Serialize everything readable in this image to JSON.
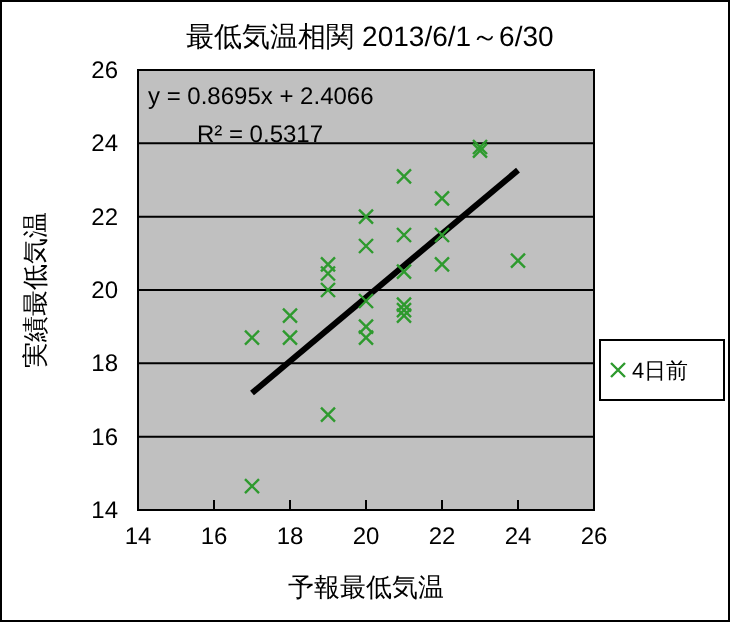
{
  "chart_data": {
    "type": "scatter",
    "title": "最低気温相関  2013/6/1～6/30",
    "xlabel": "予報最低気温",
    "ylabel": "実績最低気温",
    "annotations": [
      "y = 0.8695x + 2.4066",
      "R² = 0.5317"
    ],
    "series": [
      {
        "name": "4日前",
        "color": "#2e9a2e",
        "marker": "cross",
        "x": [
          17,
          17,
          18,
          18,
          19,
          19,
          19,
          19,
          20,
          20,
          20,
          20,
          20,
          21,
          21,
          21,
          21,
          21,
          21,
          22,
          22,
          22,
          23,
          23,
          24
        ],
        "values": [
          14.65,
          18.7,
          19.3,
          18.7,
          16.6,
          20.0,
          20.45,
          20.7,
          22.0,
          21.2,
          19.7,
          19.0,
          18.7,
          23.1,
          21.5,
          20.5,
          19.6,
          19.45,
          19.3,
          22.5,
          21.5,
          20.7,
          23.9,
          23.8,
          20.8
        ]
      },
      {
        "type": "line",
        "color": "#000000",
        "x": [
          17,
          24
        ],
        "values": [
          17.19,
          23.27
        ]
      }
    ],
    "xlim": [
      14,
      26
    ],
    "xticks": [
      14,
      16,
      18,
      20,
      22,
      24,
      26
    ],
    "ylim": [
      14,
      26
    ],
    "yticks": [
      14,
      16,
      18,
      20,
      22,
      24,
      26
    ],
    "grid": "y",
    "legend": "right"
  }
}
